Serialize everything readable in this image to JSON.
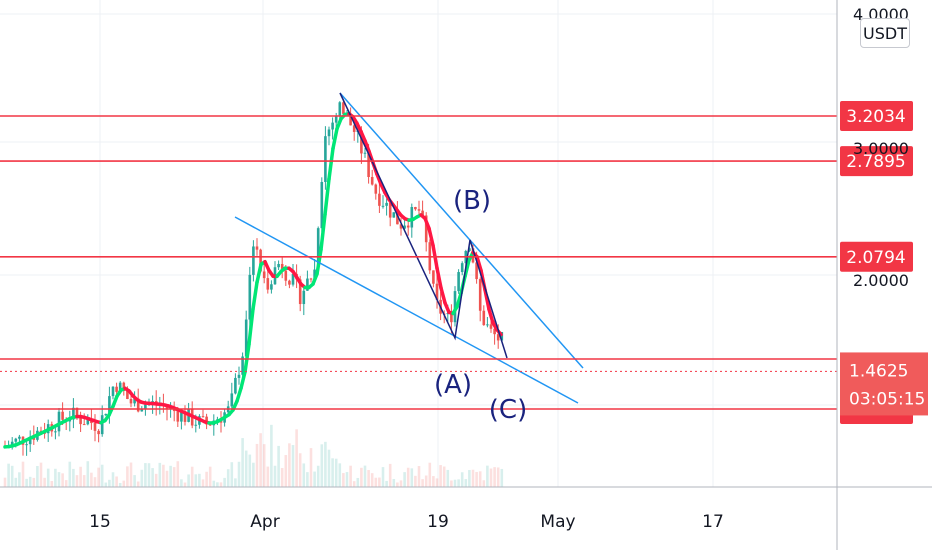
{
  "chart_data": {
    "type": "candlestick",
    "y_ticks": [
      "4.0000",
      "3.0000",
      "2.0000"
    ],
    "x_ticks": [
      "15",
      "Apr",
      "19",
      "May",
      "17"
    ],
    "unit": "USDT",
    "price_levels": [
      {
        "value": 3.2034,
        "label": "3.2034"
      },
      {
        "value": 2.7895,
        "label": "2.7895"
      },
      {
        "value": 2.0794,
        "label": "2.0794"
      },
      {
        "value": 1.3032,
        "label": "1.3032"
      }
    ],
    "current_price": {
      "value": 1.4625,
      "label": "1.4625",
      "countdown": "03:05:15"
    },
    "wave_labels": [
      "(B)",
      "(A)",
      "(C)"
    ],
    "colors": {
      "up": "#26a69a",
      "down": "#ef5350",
      "level": "#f23645",
      "trend": "#2196f3",
      "wave": "#1a237e",
      "ma_up": "#00e676",
      "ma_down": "#ff1744"
    }
  }
}
